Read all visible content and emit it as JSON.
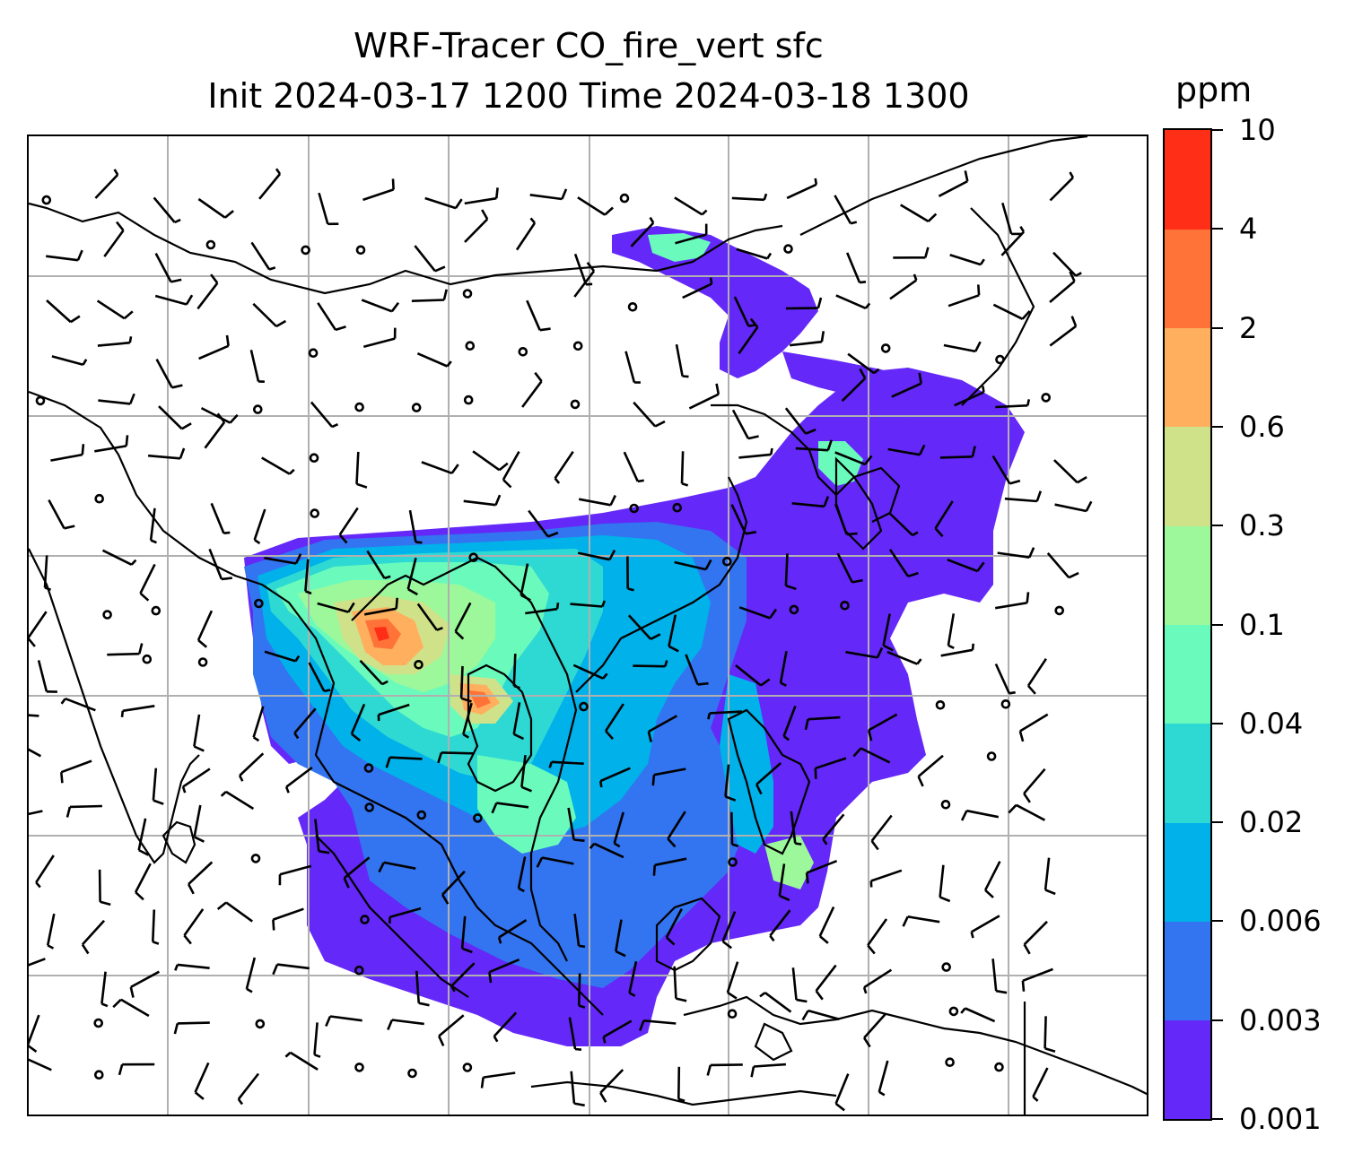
{
  "title": {
    "line1": "WRF-Tracer CO_fire_vert sfc",
    "line2": "Init 2024-03-17 1200 Time 2024-03-18 1300"
  },
  "colorbar": {
    "units": "ppm",
    "levels": [
      "0.001",
      "0.003",
      "0.006",
      "0.02",
      "0.04",
      "0.1",
      "0.3",
      "0.6",
      "2",
      "4",
      "10"
    ],
    "colors": [
      "#6428f8",
      "#3374f0",
      "#00b1ea",
      "#2ed9d3",
      "#6afbbc",
      "#9cf89a",
      "#cfe28a",
      "#ffaf5e",
      "#ff7238",
      "#ff2e16"
    ]
  },
  "map": {
    "gridlines": true,
    "grid_color": "#b0b0b0",
    "coastline_color": "#000000",
    "wind_barbs": true
  }
}
